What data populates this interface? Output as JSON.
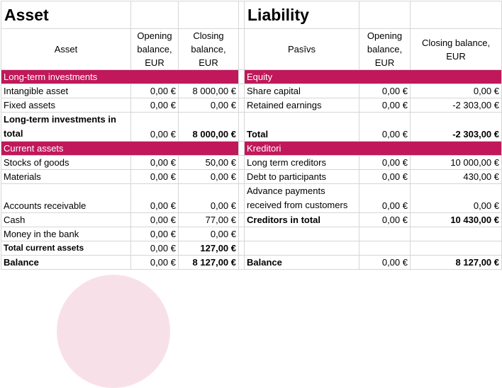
{
  "asset": {
    "title": "Asset",
    "col_name": "Asset",
    "col_open": "Opening balance, EUR",
    "col_close": "Closing balance, EUR",
    "sec1": "Long-term investments",
    "r_intangible": [
      "Intangible asset",
      "0,00 €",
      "8 000,00 €"
    ],
    "r_fixed": [
      "Fixed assets",
      "0,00 €",
      "0,00 €"
    ],
    "r_lt_total": [
      "Long-term investments in total",
      "0,00 €",
      "8 000,00 €"
    ],
    "sec2": "Current assets",
    "r_stocks": [
      "Stocks of goods",
      "0,00 €",
      "50,00 €"
    ],
    "r_materials": [
      "Materials",
      "0,00 €",
      "0,00 €"
    ],
    "r_receivable": [
      "Accounts receivable",
      "0,00 €",
      "0,00 €"
    ],
    "r_cash": [
      "Cash",
      "0,00 €",
      "77,00 €"
    ],
    "r_bank": [
      "Money in the bank",
      "0,00 €",
      "0,00 €"
    ],
    "r_cur_total": [
      "Total current assets",
      "0,00 €",
      "127,00 €"
    ],
    "r_balance": [
      "Balance",
      "0,00 €",
      "8 127,00 €"
    ]
  },
  "liability": {
    "title": "Liability",
    "col_name": "Pasīvs",
    "col_open": "Opening balance, EUR",
    "col_close": "Closing balance, EUR",
    "sec1": "Equity",
    "r_share": [
      "Share capital",
      "0,00 €",
      "0,00 €"
    ],
    "r_retained": [
      "Retained earnings",
      "0,00 €",
      "-2 303,00 €"
    ],
    "r_total": [
      "Total",
      "0,00 €",
      "-2 303,00 €"
    ],
    "sec2": "Kreditori",
    "r_ltc": [
      "Long term creditors",
      "0,00 €",
      "10 000,00 €"
    ],
    "r_debt": [
      "Debt to participants",
      "0,00 €",
      "430,00 €"
    ],
    "r_advance": [
      "Advance payments received from customers",
      "0,00 €",
      "0,00 €"
    ],
    "r_cred_total": [
      "Creditors in total",
      "0,00 €",
      "10 430,00 €"
    ],
    "r_balance": [
      "Balance",
      "0,00 €",
      "8 127,00 €"
    ]
  },
  "colors": {
    "band": "#c0185a",
    "grid": "#d6d6d6"
  }
}
